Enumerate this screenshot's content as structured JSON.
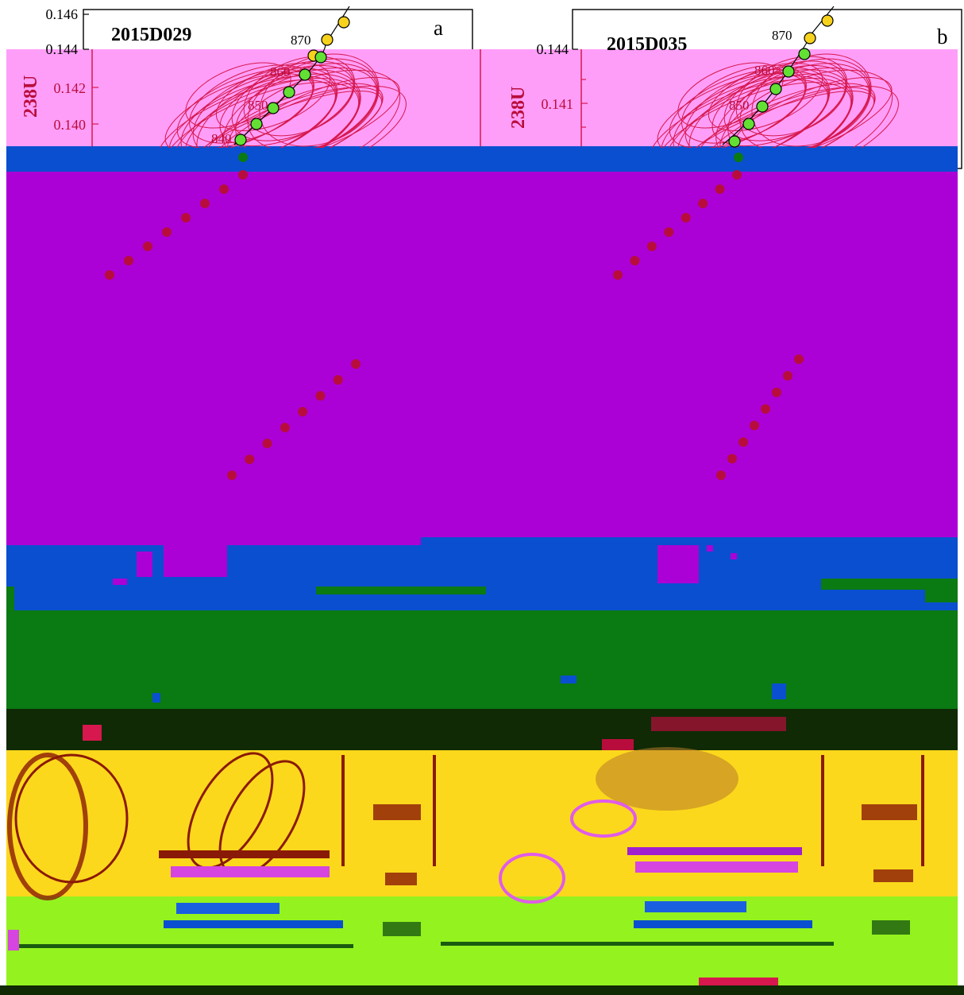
{
  "chart_data": [
    {
      "type": "scatter",
      "panel_letter": "a",
      "sample": "2015D029",
      "ylabel": "238U",
      "y_ticks": [
        "0.146",
        "0.144",
        "0.142",
        "0.140"
      ],
      "concordia_age_labels": [
        "870",
        "860",
        "850",
        "840"
      ],
      "concordia_ratios": [
        0.1445,
        0.1427,
        0.141,
        0.1393
      ]
    },
    {
      "type": "scatter",
      "panel_letter": "b",
      "sample": "2015D035",
      "ylabel": "238U",
      "y_ticks": [
        "0.144",
        "0.141"
      ],
      "concordia_age_labels": [
        "870",
        "860",
        "850"
      ],
      "concordia_ratios": [
        0.1445,
        0.1427,
        0.141
      ]
    }
  ],
  "colors": {
    "band_pink": "#ff9ef8",
    "band_blue": "#0a4fd0",
    "band_purple": "#ab00d6",
    "band_green": "#0a7a12",
    "band_dark": "#0f2a05",
    "band_yellow": "#fcd81c",
    "band_lime": "#94f21f",
    "ellipse": "#d6184e",
    "concordia_gold": "#f7d21d",
    "concordia_green": "#62e034",
    "dots": "#b80d3c"
  }
}
